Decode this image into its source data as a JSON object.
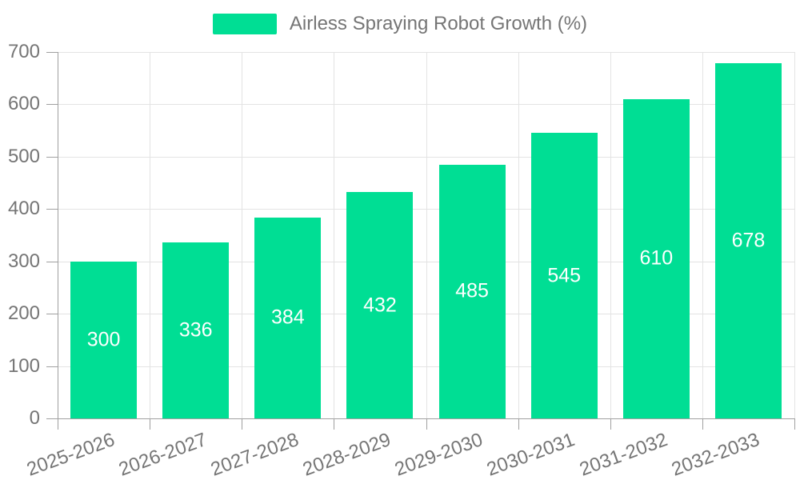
{
  "chart_data": {
    "type": "bar",
    "title": "Airless Spraying Robot Growth (%)",
    "categories": [
      "2025-2026",
      "2026-2027",
      "2027-2028",
      "2028-2029",
      "2029-2030",
      "2030-2031",
      "2031-2032",
      "2032-2033"
    ],
    "series": [
      {
        "name": "Airless Spraying Robot Growth (%)",
        "values": [
          300,
          336,
          384,
          432,
          485,
          545,
          610,
          678
        ]
      }
    ],
    "xlabel": "",
    "ylabel": "",
    "ylim": [
      0,
      700
    ],
    "ytick_step": 100,
    "yticks": [
      0,
      100,
      200,
      300,
      400,
      500,
      600,
      700
    ],
    "grid": "on",
    "legend_position": "top-center",
    "bar_label_position": "inside-center",
    "colors": {
      "bar": "#00de94",
      "bar_value_label": "#ffffff",
      "axis_line": "#a0a0a0",
      "gridline": "#e3e3e3",
      "tick_text": "#757575",
      "legend_text": "#757575",
      "background": "#ffffff"
    }
  }
}
